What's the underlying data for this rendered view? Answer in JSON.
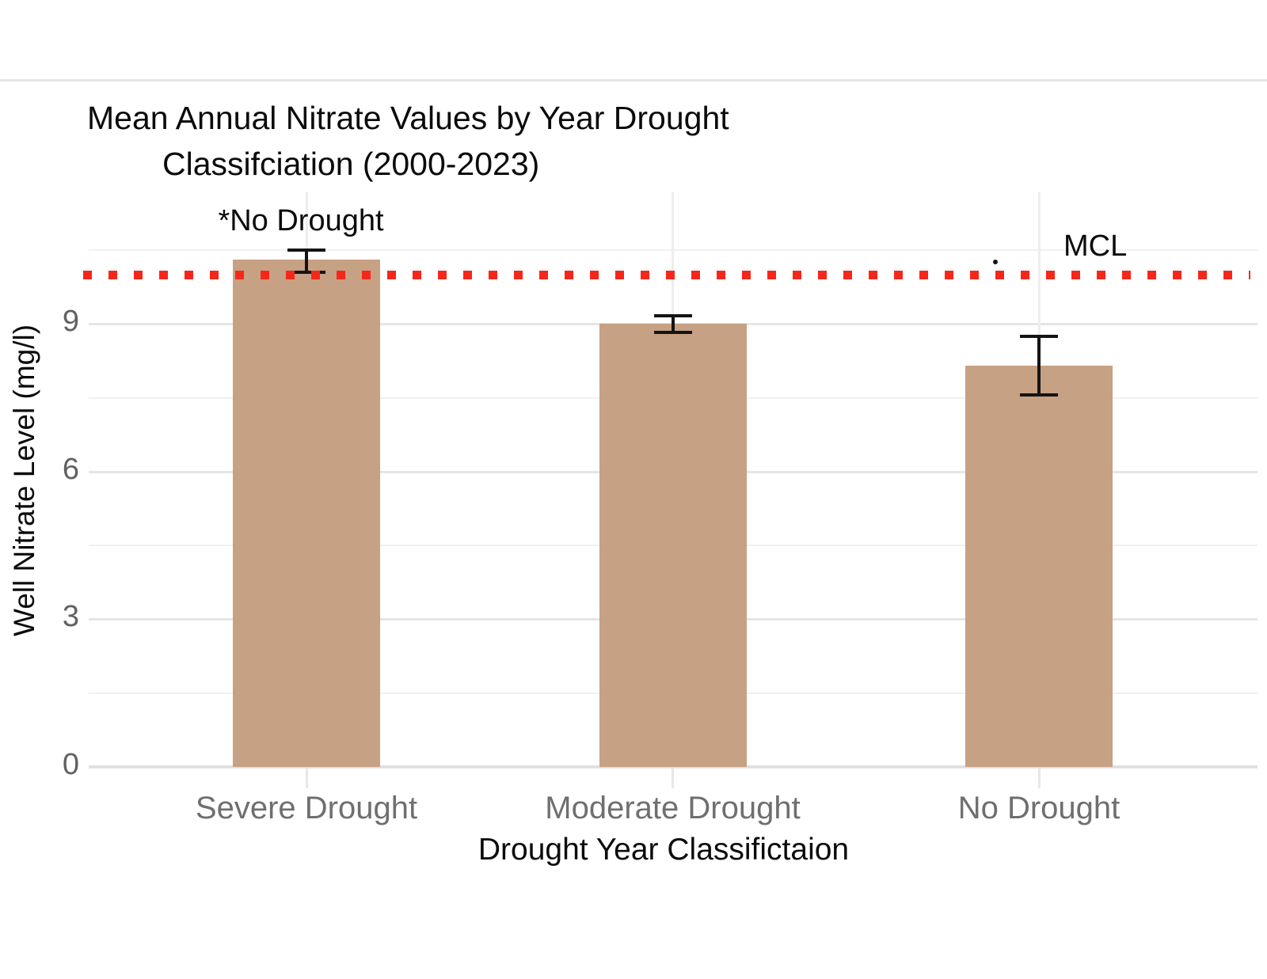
{
  "page": {
    "background": "#ffffff",
    "separator_color": "#e3e7ea"
  },
  "chart": {
    "title_line1": "Mean Annual Nitrate Values by Year Drought",
    "title_line2": "Classifciation (2000-2023)",
    "bar_annotation": "*No Drought",
    "mcl_label": "MCL",
    "xlabel": "Drought Year Classifictaion",
    "ylabel": "Well Nitrate Level (mg/l)"
  },
  "chart_data": {
    "type": "bar",
    "title": "Mean Annual Nitrate Values by Year Drought Classifciation (2000-2023)",
    "categories": [
      "Severe Drought",
      "Moderate Drought",
      "No Drought"
    ],
    "values": [
      10.3,
      9.0,
      8.15
    ],
    "error_plus": [
      0.2,
      0.17,
      0.6
    ],
    "error_minus": [
      0.25,
      0.17,
      0.6
    ],
    "reference_line": {
      "label": "MCL",
      "value": 10,
      "style": "dotted",
      "color": "#f5271b"
    },
    "annotations": [
      {
        "text": "*No Drought",
        "target_category": "Severe Drought"
      }
    ],
    "xlabel": "Drought Year Classifictaion",
    "ylabel": "Well Nitrate Level (mg/l)",
    "ylim": [
      0,
      11.6
    ],
    "yticks": [
      0,
      3,
      6,
      9
    ],
    "minor_gridlines": [
      1.5,
      4.5,
      7.5,
      10.5
    ],
    "bar_color": "#c7a183",
    "grid": "on",
    "legend": "none"
  }
}
